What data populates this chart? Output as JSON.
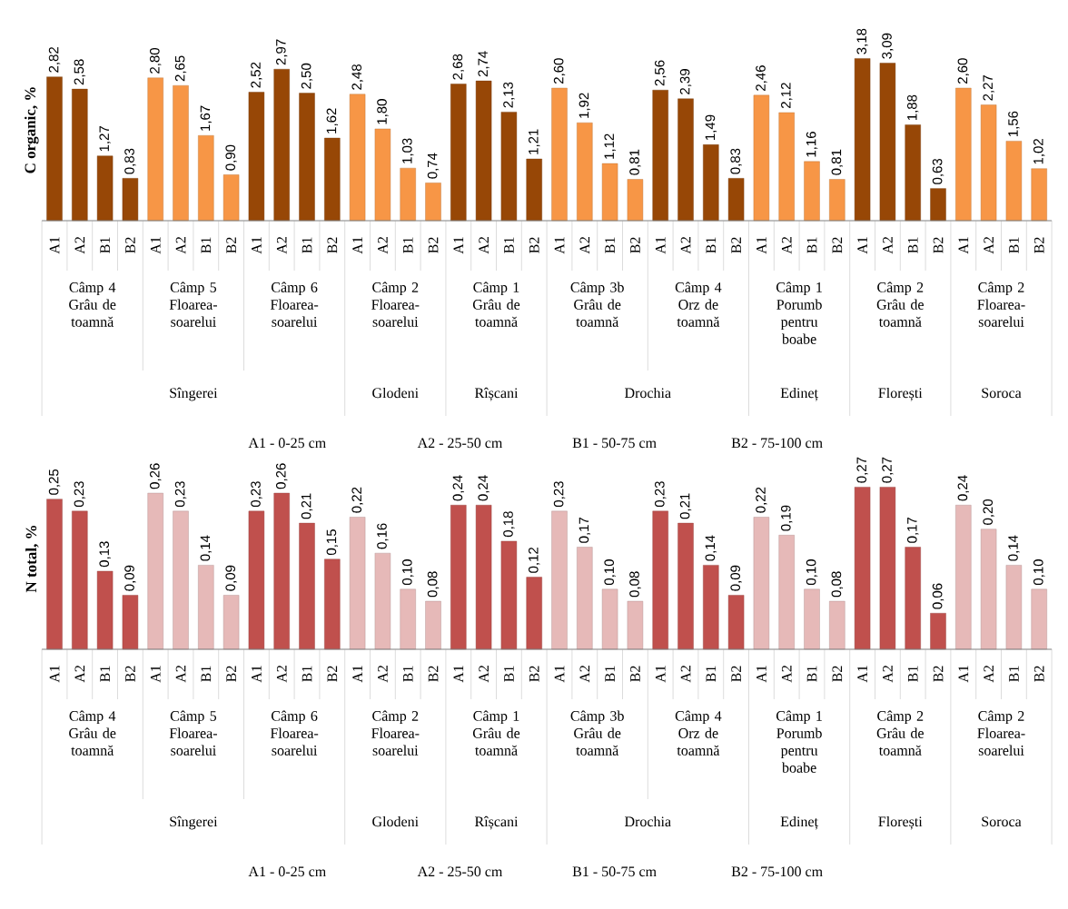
{
  "chart_data": [
    {
      "type": "bar",
      "ylabel": "C organic, %",
      "categories": [
        "A1",
        "A2",
        "B1",
        "B2",
        "A1",
        "A2",
        "B1",
        "B2",
        "A1",
        "A2",
        "B1",
        "B2",
        "A1",
        "A2",
        "B1",
        "B2",
        "A1",
        "A2",
        "B1",
        "B2",
        "A1",
        "A2",
        "B1",
        "B2",
        "A1",
        "A2",
        "B1",
        "B2",
        "A1",
        "A2",
        "B1",
        "B2",
        "A1",
        "A2",
        "B1",
        "B2",
        "A1",
        "A2",
        "B1",
        "B2"
      ],
      "values": [
        2.82,
        2.58,
        1.27,
        0.83,
        2.8,
        2.65,
        1.67,
        0.9,
        2.52,
        2.97,
        2.5,
        1.62,
        2.48,
        1.8,
        1.03,
        0.74,
        2.68,
        2.74,
        2.13,
        1.21,
        2.6,
        1.92,
        1.12,
        0.81,
        2.56,
        2.39,
        1.49,
        0.83,
        2.46,
        2.12,
        1.16,
        0.81,
        3.18,
        3.09,
        1.88,
        0.63,
        2.6,
        2.27,
        1.56,
        1.02
      ],
      "value_labels": [
        "2,82",
        "2,58",
        "1,27",
        "0,83",
        "2,80",
        "2,65",
        "1,67",
        "0,90",
        "2,52",
        "2,97",
        "2,50",
        "1,62",
        "2,48",
        "1,80",
        "1,03",
        "0,74",
        "2,68",
        "2,74",
        "2,13",
        "1,21",
        "2,60",
        "1,92",
        "1,12",
        "0,81",
        "2,56",
        "2,39",
        "1,49",
        "0,83",
        "2,46",
        "2,12",
        "1,16",
        "0,81",
        "3,18",
        "3,09",
        "1,88",
        "0,63",
        "2,60",
        "2,27",
        "1,56",
        "1,02"
      ],
      "colors": [
        "#974706",
        "#974706",
        "#974706",
        "#974706",
        "#f79646",
        "#f79646",
        "#f79646",
        "#f79646",
        "#974706",
        "#974706",
        "#974706",
        "#974706",
        "#f79646",
        "#f79646",
        "#f79646",
        "#f79646",
        "#974706",
        "#974706",
        "#974706",
        "#974706",
        "#f79646",
        "#f79646",
        "#f79646",
        "#f79646",
        "#974706",
        "#974706",
        "#974706",
        "#974706",
        "#f79646",
        "#f79646",
        "#f79646",
        "#f79646",
        "#974706",
        "#974706",
        "#974706",
        "#974706",
        "#f79646",
        "#f79646",
        "#f79646",
        "#f79646"
      ],
      "annotations": [
        "Câmp 4 Grâu de toamnă",
        "Câmp 5 Floarea-soarelui",
        "Câmp 6 Floarea-soarelui",
        "Câmp 2 Floarea-soarelui",
        "Câmp 1 Grâu de toamnă",
        "Câmp 3b Grâu de toamnă",
        "Câmp 4 Orz de toamnă",
        "Câmp 1 Porumb pentru boabe",
        "Câmp 2 Grâu de toamnă",
        "Câmp 2 Floarea-soarelui",
        "Sîngerei",
        "Glodeni",
        "Rîșcani",
        "Drochia",
        "Edineț",
        "Florești",
        "Soroca",
        "A1 - 0-25 cm",
        "A2 - 25-50 cm",
        "B1 - 50-75 cm",
        "B2 - 75-100 cm"
      ]
    },
    {
      "type": "bar",
      "ylabel": "N total, %",
      "categories": [
        "A1",
        "A2",
        "B1",
        "B2",
        "A1",
        "A2",
        "B1",
        "B2",
        "A1",
        "A2",
        "B1",
        "B2",
        "A1",
        "A2",
        "B1",
        "B2",
        "A1",
        "A2",
        "B1",
        "B2",
        "A1",
        "A2",
        "B1",
        "B2",
        "A1",
        "A2",
        "B1",
        "B2",
        "A1",
        "A2",
        "B1",
        "B2",
        "A1",
        "A2",
        "B1",
        "B2",
        "A1",
        "A2",
        "B1",
        "B2"
      ],
      "values": [
        0.25,
        0.23,
        0.13,
        0.09,
        0.26,
        0.23,
        0.14,
        0.09,
        0.23,
        0.26,
        0.21,
        0.15,
        0.22,
        0.16,
        0.1,
        0.08,
        0.24,
        0.24,
        0.18,
        0.12,
        0.23,
        0.17,
        0.1,
        0.08,
        0.23,
        0.21,
        0.14,
        0.09,
        0.22,
        0.19,
        0.1,
        0.08,
        0.27,
        0.27,
        0.17,
        0.06,
        0.24,
        0.2,
        0.14,
        0.1
      ],
      "value_labels": [
        "0,25",
        "0,23",
        "0,13",
        "0,09",
        "0,26",
        "0,23",
        "0,14",
        "0,09",
        "0,23",
        "0,26",
        "0,21",
        "0,15",
        "0,22",
        "0,16",
        "0,10",
        "0,08",
        "0,24",
        "0,24",
        "0,18",
        "0,12",
        "0,23",
        "0,17",
        "0,10",
        "0,08",
        "0,23",
        "0,21",
        "0,14",
        "0,09",
        "0,22",
        "0,19",
        "0,10",
        "0,08",
        "0,27",
        "0,27",
        "0,17",
        "0,06",
        "0,24",
        "0,20",
        "0,14",
        "0,10"
      ],
      "colors": [
        "#c0504d",
        "#c0504d",
        "#c0504d",
        "#c0504d",
        "#e6b9b8",
        "#e6b9b8",
        "#e6b9b8",
        "#e6b9b8",
        "#c0504d",
        "#c0504d",
        "#c0504d",
        "#c0504d",
        "#e6b9b8",
        "#e6b9b8",
        "#e6b9b8",
        "#e6b9b8",
        "#c0504d",
        "#c0504d",
        "#c0504d",
        "#c0504d",
        "#e6b9b8",
        "#e6b9b8",
        "#e6b9b8",
        "#e6b9b8",
        "#c0504d",
        "#c0504d",
        "#c0504d",
        "#c0504d",
        "#e6b9b8",
        "#e6b9b8",
        "#e6b9b8",
        "#e6b9b8",
        "#c0504d",
        "#c0504d",
        "#c0504d",
        "#c0504d",
        "#e6b9b8",
        "#e6b9b8",
        "#e6b9b8",
        "#e6b9b8"
      ],
      "annotations": [
        "Câmp 4 Grâu de toamnă",
        "Câmp 5 Floarea-soarelui",
        "Câmp 6 Floarea-soarelui",
        "Câmp 2 Floarea-soarelui",
        "Câmp 1 Grâu de toamnă",
        "Câmp 3b Grâu de toamnă",
        "Câmp 4 Orz de toamnă",
        "Câmp 1 Porumb pentru boabe",
        "Câmp 2 Grâu de toamnă",
        "Câmp 2 Floarea-soarelui",
        "Sîngerei",
        "Glodeni",
        "Rîșcani",
        "Drochia",
        "Edineț",
        "Florești",
        "Soroca",
        "A1 - 0-25 cm",
        "A2 - 25-50 cm",
        "B1 - 50-75 cm",
        "B2 - 75-100 cm"
      ]
    }
  ]
}
